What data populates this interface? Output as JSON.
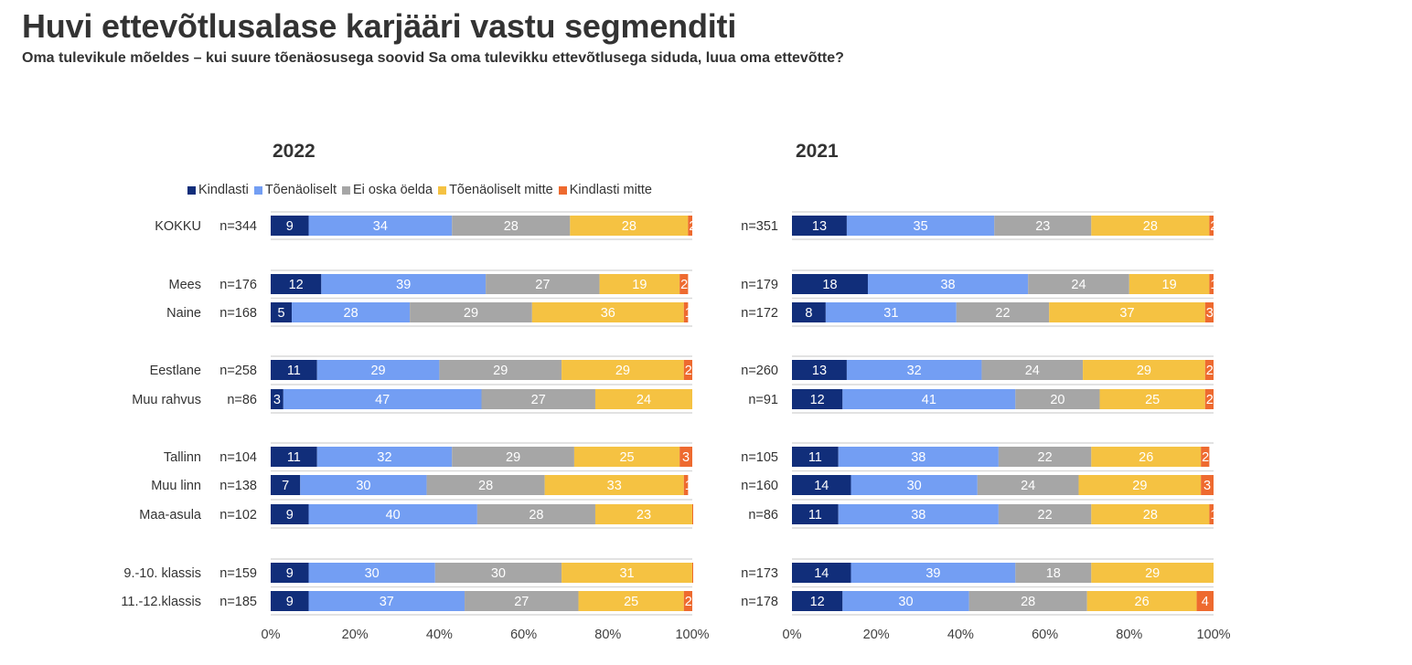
{
  "title": "Huvi ettevõtlusalase karjääri vastu segmenditi",
  "subtitle": "Oma tulevikule mõeldes – kui suure tõenäosusega soovid Sa oma tulevikku ettevõtlusega siduda, luua oma ettevõtte?",
  "legend": [
    {
      "label": "Kindlasti",
      "color": "#112E7A"
    },
    {
      "label": "Tõenäoliselt",
      "color": "#739EF3"
    },
    {
      "label": "Ei oska öelda",
      "color": "#A6A6A6"
    },
    {
      "label": "Tõenäoliselt mitte",
      "color": "#F5C242"
    },
    {
      "label": "Kindlasti mitte",
      "color": "#EE6A2F"
    }
  ],
  "chart_data": [
    {
      "type": "bar",
      "orientation": "horizontal-stacked-100",
      "title": "2022",
      "legend_position": "top",
      "xlim": [
        0,
        100
      ],
      "xticks": [
        "0%",
        "20%",
        "40%",
        "60%",
        "80%",
        "100%"
      ],
      "categories": [
        "KOKKU",
        "Mees",
        "Naine",
        "Eestlane",
        "Muu rahvus",
        "Tallinn",
        "Muu linn",
        "Maa-asula",
        "9.-10. klassis",
        "11.-12.klassis"
      ],
      "groups": [
        [
          0
        ],
        [
          1,
          2
        ],
        [
          3,
          4
        ],
        [
          5,
          6,
          7
        ],
        [
          8,
          9
        ]
      ],
      "n": [
        "n=344",
        "n=176",
        "n=168",
        "n=258",
        "n=86",
        "n=104",
        "n=138",
        "n=102",
        "n=159",
        "n=185"
      ],
      "series": [
        {
          "name": "Kindlasti",
          "values": [
            9,
            12,
            5,
            11,
            3,
            11,
            7,
            9,
            9,
            9
          ]
        },
        {
          "name": "Tõenäoliselt",
          "values": [
            34,
            39,
            28,
            29,
            47,
            32,
            30,
            40,
            30,
            37
          ]
        },
        {
          "name": "Ei oska öelda",
          "values": [
            28,
            27,
            29,
            29,
            27,
            29,
            28,
            28,
            30,
            27
          ]
        },
        {
          "name": "Tõenäoliselt mitte",
          "values": [
            28,
            19,
            36,
            29,
            24,
            25,
            33,
            23,
            31,
            25
          ]
        },
        {
          "name": "Kindlasti mitte",
          "values": [
            2,
            2,
            1,
            2,
            0,
            3,
            1,
            1,
            1,
            2
          ]
        }
      ]
    },
    {
      "type": "bar",
      "orientation": "horizontal-stacked-100",
      "title": "2021",
      "xlim": [
        0,
        100
      ],
      "xticks": [
        "0%",
        "20%",
        "40%",
        "60%",
        "80%",
        "100%"
      ],
      "categories": [
        "KOKKU",
        "Mees",
        "Naine",
        "Eestlane",
        "Muu rahvus",
        "Tallinn",
        "Muu linn",
        "Maa-asula",
        "9.-10. klassis",
        "11.-12.klassis"
      ],
      "groups": [
        [
          0
        ],
        [
          1,
          2
        ],
        [
          3,
          4
        ],
        [
          5,
          6,
          7
        ],
        [
          8,
          9
        ]
      ],
      "n": [
        "n=351",
        "n=179",
        "n=172",
        "n=260",
        "n=91",
        "n=105",
        "n=160",
        "n=86",
        "n=173",
        "n=178"
      ],
      "series": [
        {
          "name": "Kindlasti",
          "values": [
            13,
            18,
            8,
            13,
            12,
            11,
            14,
            11,
            14,
            12
          ]
        },
        {
          "name": "Tõenäoliselt",
          "values": [
            35,
            38,
            31,
            32,
            41,
            38,
            30,
            38,
            39,
            30
          ]
        },
        {
          "name": "Ei oska öelda",
          "values": [
            23,
            24,
            22,
            24,
            20,
            22,
            24,
            22,
            18,
            28
          ]
        },
        {
          "name": "Tõenäoliselt mitte",
          "values": [
            28,
            19,
            37,
            29,
            25,
            26,
            29,
            28,
            29,
            26
          ]
        },
        {
          "name": "Kindlasti mitte",
          "values": [
            2,
            1,
            3,
            2,
            2,
            2,
            3,
            1,
            null,
            4
          ]
        }
      ]
    }
  ]
}
